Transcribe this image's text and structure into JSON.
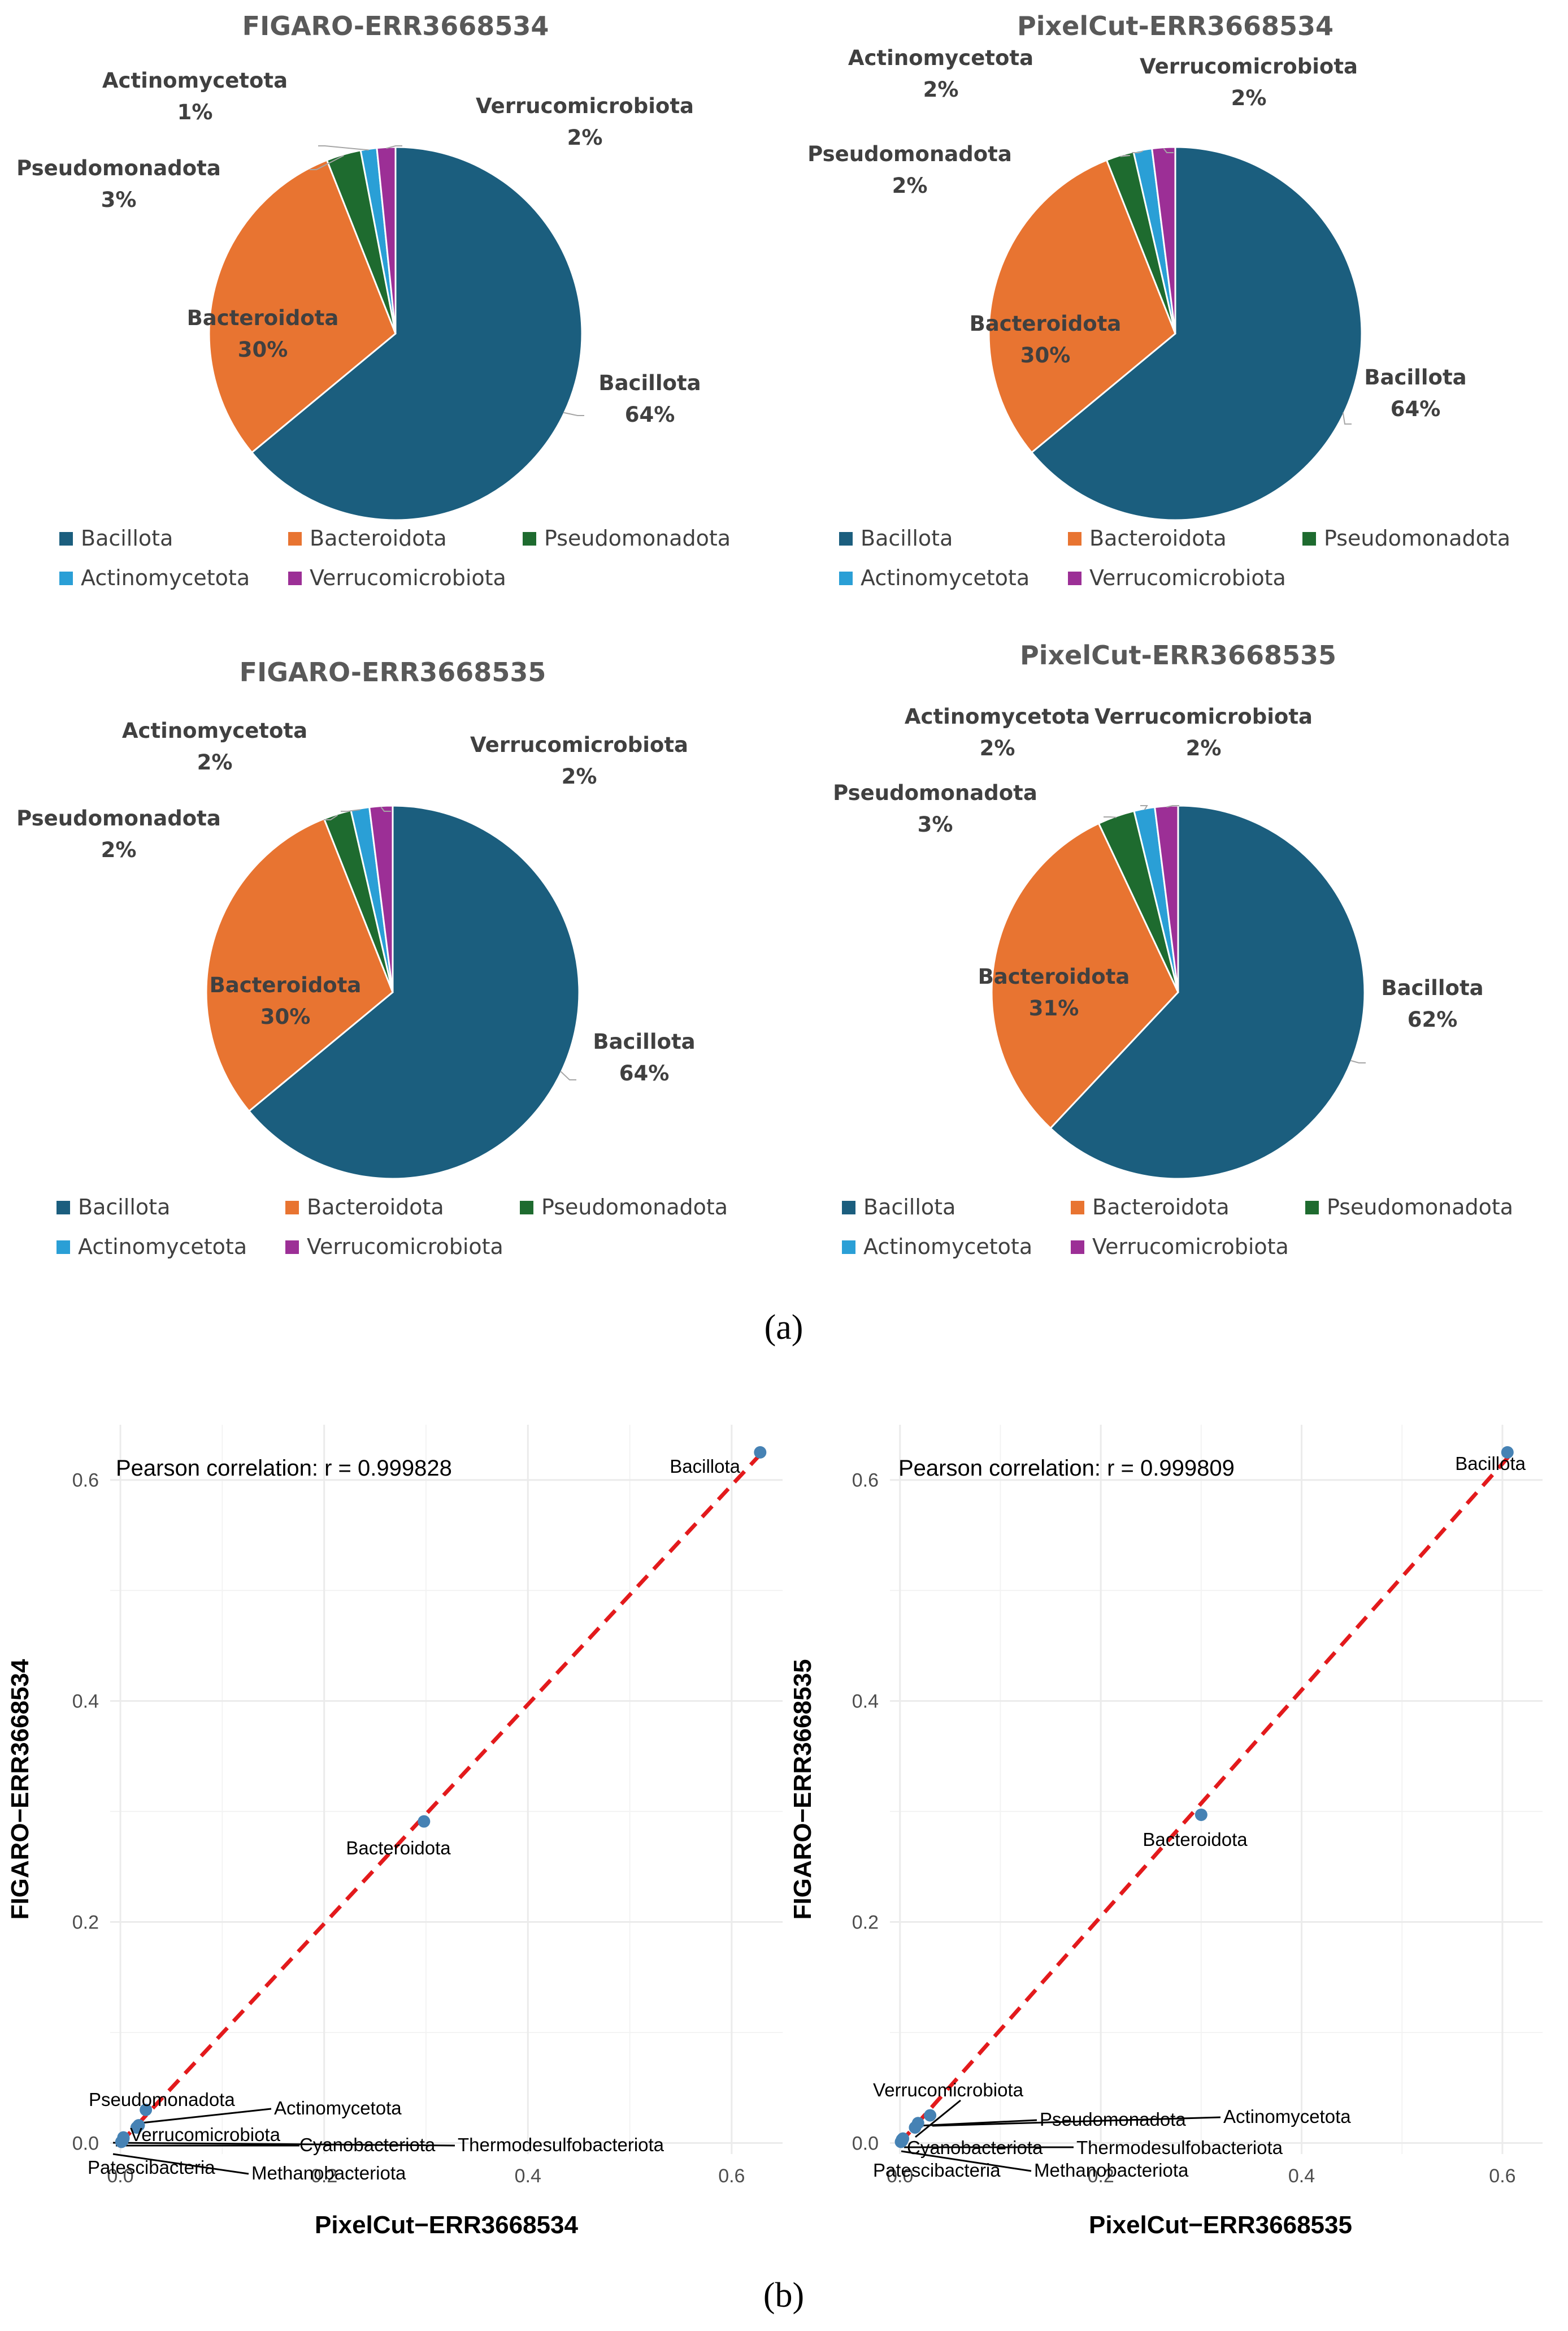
{
  "colors": {
    "Bacillota": "#1b5e7e",
    "Bacteroidota": "#e87431",
    "Pseudomonadota": "#1e6b2f",
    "Actinomycetota": "#2a9fd6",
    "Verrucomicrobiota": "#9c2f96",
    "point": "#4682b4",
    "fit_line": "#e31a1c",
    "grid": "#ebebeb"
  },
  "captions": {
    "a": "(a)",
    "b": "(b)"
  },
  "chart_data": [
    {
      "type": "pie",
      "title": "FIGARO-ERR3668534",
      "slices": [
        {
          "label": "Bacillota",
          "pct": "64%",
          "value": 64
        },
        {
          "label": "Bacteroidota",
          "pct": "30%",
          "value": 30
        },
        {
          "label": "Pseudomonadota",
          "pct": "3%",
          "value": 3
        },
        {
          "label": "Actinomycetota",
          "pct": "1%",
          "value": 1.4
        },
        {
          "label": "Verrucomicrobiota",
          "pct": "2%",
          "value": 1.6
        }
      ],
      "legend": [
        "Bacillota",
        "Bacteroidota",
        "Pseudomonadota",
        "Actinomycetota",
        "Verrucomicrobiota"
      ]
    },
    {
      "type": "pie",
      "title": "PixelCut-ERR3668534",
      "slices": [
        {
          "label": "Bacillota",
          "pct": "64%",
          "value": 64
        },
        {
          "label": "Bacteroidota",
          "pct": "30%",
          "value": 30
        },
        {
          "label": "Pseudomonadota",
          "pct": "2%",
          "value": 2.4
        },
        {
          "label": "Actinomycetota",
          "pct": "2%",
          "value": 1.6
        },
        {
          "label": "Verrucomicrobiota",
          "pct": "2%",
          "value": 2
        }
      ],
      "legend": [
        "Bacillota",
        "Bacteroidota",
        "Pseudomonadota",
        "Actinomycetota",
        "Verrucomicrobiota"
      ]
    },
    {
      "type": "pie",
      "title": "FIGARO-ERR3668535",
      "slices": [
        {
          "label": "Bacillota",
          "pct": "64%",
          "value": 64
        },
        {
          "label": "Bacteroidota",
          "pct": "30%",
          "value": 30
        },
        {
          "label": "Pseudomonadota",
          "pct": "2%",
          "value": 2.4
        },
        {
          "label": "Actinomycetota",
          "pct": "2%",
          "value": 1.6
        },
        {
          "label": "Verrucomicrobiota",
          "pct": "2%",
          "value": 2
        }
      ],
      "legend": [
        "Bacillota",
        "Bacteroidota",
        "Pseudomonadota",
        "Actinomycetota",
        "Verrucomicrobiota"
      ]
    },
    {
      "type": "pie",
      "title": "PixelCut-ERR3668535",
      "slices": [
        {
          "label": "Bacillota",
          "pct": "62%",
          "value": 62
        },
        {
          "label": "Bacteroidota",
          "pct": "31%",
          "value": 31
        },
        {
          "label": "Pseudomonadota",
          "pct": "3%",
          "value": 3.2
        },
        {
          "label": "Actinomycetota",
          "pct": "2%",
          "value": 1.8
        },
        {
          "label": "Verrucomicrobiota",
          "pct": "2%",
          "value": 2
        }
      ],
      "legend": [
        "Bacillota",
        "Bacteroidota",
        "Pseudomonadota",
        "Actinomycetota",
        "Verrucomicrobiota"
      ]
    },
    {
      "type": "scatter",
      "xlabel": "PixelCut−ERR3668534",
      "ylabel": "FIGARO−ERR3668534",
      "annotation": "Pearson correlation: r = 0.999828",
      "xlim": [
        -0.01,
        0.65
      ],
      "ylim": [
        -0.01,
        0.65
      ],
      "xticks": [
        "0.0",
        "0.2",
        "0.4",
        "0.6"
      ],
      "yticks": [
        "0.0",
        "0.2",
        "0.4",
        "0.6"
      ],
      "fit_line": [
        [
          0,
          0
        ],
        [
          0.63,
          0.625
        ]
      ],
      "points": [
        {
          "label": "Bacillota",
          "x": 0.628,
          "y": 0.625
        },
        {
          "label": "Bacteroidota",
          "x": 0.298,
          "y": 0.291
        },
        {
          "label": "Pseudomonadota",
          "x": 0.025,
          "y": 0.03
        },
        {
          "label": "Actinomycetota",
          "x": 0.016,
          "y": 0.014
        },
        {
          "label": "Verrucomicrobiota",
          "x": 0.018,
          "y": 0.016
        },
        {
          "label": "Cyanobacteriota",
          "x": 0.003,
          "y": 0.004
        },
        {
          "label": "Thermodesulfobacteriota",
          "x": 0.003,
          "y": 0.005
        },
        {
          "label": "Patescibacteria",
          "x": 0.001,
          "y": 0.001
        },
        {
          "label": "Methanobacteriota",
          "x": 0.002,
          "y": 0.002
        }
      ]
    },
    {
      "type": "scatter",
      "xlabel": "PixelCut−ERR3668535",
      "ylabel": "FIGARO−ERR3668535",
      "annotation": "Pearson correlation: r = 0.999809",
      "xlim": [
        -0.01,
        0.64
      ],
      "ylim": [
        -0.01,
        0.65
      ],
      "xticks": [
        "0.0",
        "0.2",
        "0.4",
        "0.6"
      ],
      "yticks": [
        "0.0",
        "0.2",
        "0.4",
        "0.6"
      ],
      "fit_line": [
        [
          0,
          0
        ],
        [
          0.61,
          0.625
        ]
      ],
      "points": [
        {
          "label": "Bacillota",
          "x": 0.605,
          "y": 0.625
        },
        {
          "label": "Bacteroidota",
          "x": 0.3,
          "y": 0.297
        },
        {
          "label": "Verrucomicrobiota",
          "x": 0.015,
          "y": 0.014
        },
        {
          "label": "Pseudomonadota",
          "x": 0.03,
          "y": 0.025
        },
        {
          "label": "Actinomycetota",
          "x": 0.018,
          "y": 0.018
        },
        {
          "label": "Cyanobacteriota",
          "x": 0.002,
          "y": 0.003
        },
        {
          "label": "Thermodesulfobacteriota",
          "x": 0.003,
          "y": 0.004
        },
        {
          "label": "Patescibacteria",
          "x": 0.001,
          "y": 0.001
        },
        {
          "label": "Methanobacteriota",
          "x": 0.002,
          "y": 0.002
        }
      ]
    }
  ]
}
